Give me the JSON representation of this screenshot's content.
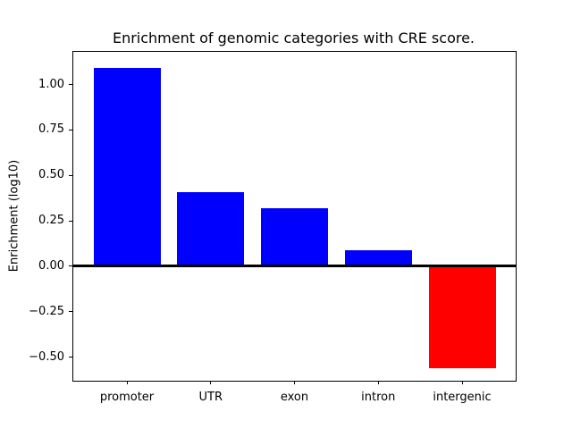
{
  "chart_data": {
    "type": "bar",
    "title": "Enrichment of genomic categories with CRE score.",
    "xlabel": "",
    "ylabel": "Enrichment (log10)",
    "categories": [
      "promoter",
      "UTR",
      "exon",
      "intron",
      "intergenic"
    ],
    "values": [
      1.09,
      0.41,
      0.32,
      0.09,
      -0.56
    ],
    "bar_colors": [
      "#0000ff",
      "#0000ff",
      "#0000ff",
      "#0000ff",
      "#ff0000"
    ],
    "positive_color": "#0000ff",
    "negative_color": "#ff0000",
    "ylim": [
      -0.63,
      1.18
    ],
    "xlim": [
      -0.64,
      4.64
    ],
    "bar_width_units": 0.8,
    "yticks": [
      {
        "value": 1.0,
        "label": "1.00"
      },
      {
        "value": 0.75,
        "label": "0.75"
      },
      {
        "value": 0.5,
        "label": "0.50"
      },
      {
        "value": 0.25,
        "label": "0.25"
      },
      {
        "value": 0.0,
        "label": "0.00"
      },
      {
        "value": -0.25,
        "label": "−0.25"
      },
      {
        "value": -0.5,
        "label": "−0.50"
      }
    ],
    "zero_line": true,
    "zero_line_color": "#000000",
    "grid": false,
    "legend": null,
    "axis_color": "#000000"
  }
}
